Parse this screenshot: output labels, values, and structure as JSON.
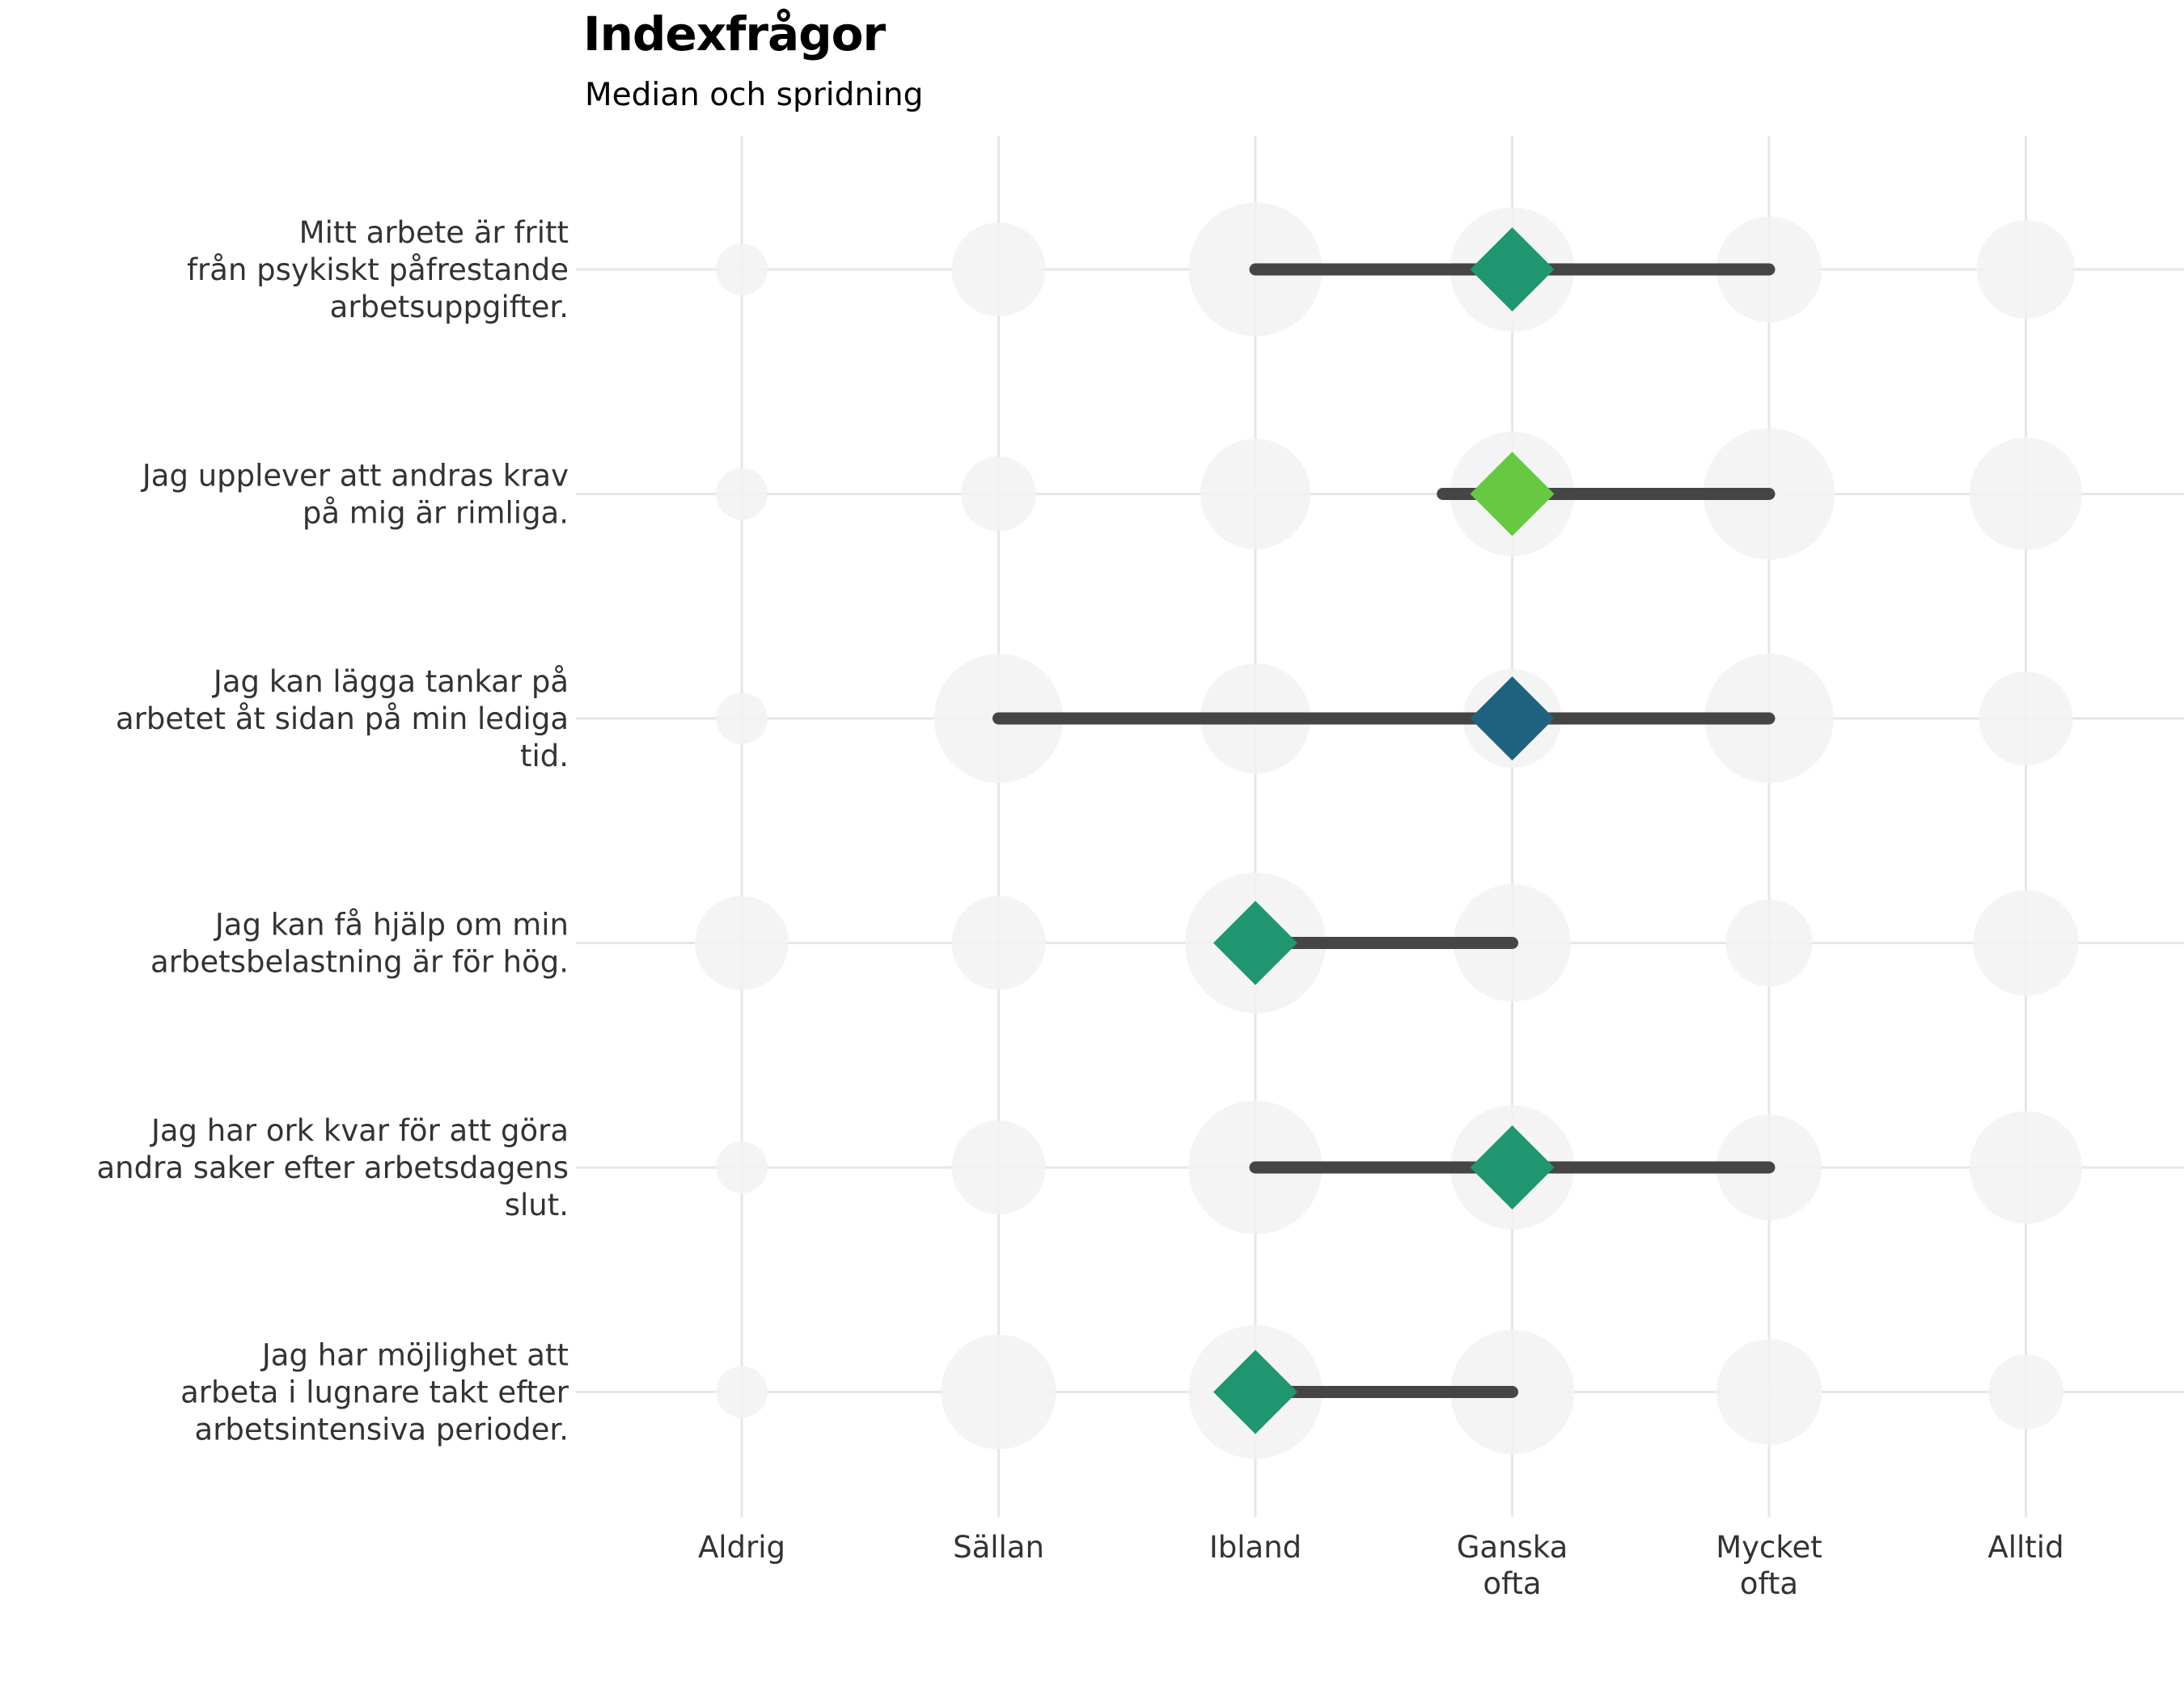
{
  "chart_data": {
    "type": "dot-range",
    "title": "Indexfrågor",
    "subtitle": "Median och spridning",
    "x_categories": [
      [
        "Aldrig"
      ],
      [
        "Sällan"
      ],
      [
        "Ibland"
      ],
      [
        "Ganska",
        "ofta"
      ],
      [
        "Mycket",
        "ofta"
      ],
      [
        "Alltid"
      ]
    ],
    "grid": true,
    "items": [
      {
        "label": [
          "Mitt arbete är fritt",
          "från psykiskt påfrestande",
          "arbetsuppgifter."
        ],
        "median": 3,
        "range": [
          2,
          4
        ],
        "bubble_sizes": [
          22,
          40,
          57,
          53,
          45,
          42
        ],
        "median_color": "#1f9670"
      },
      {
        "label": [
          "Jag upplever att andras krav",
          "på mig är rimliga."
        ],
        "median": 3,
        "range": [
          2.73,
          4
        ],
        "bubble_sizes": [
          22,
          32,
          47,
          53,
          56,
          48
        ],
        "median_color": "#67c841"
      },
      {
        "label": [
          "Jag kan lägga tankar på",
          "arbetet åt sidan på min lediga",
          "tid."
        ],
        "median": 3,
        "range": [
          1,
          4
        ],
        "bubble_sizes": [
          22,
          55,
          47,
          42,
          55,
          40
        ],
        "median_color": "#1f6280"
      },
      {
        "label": [
          "Jag kan få hjälp om min",
          "arbetsbelastning är för hög."
        ],
        "median": 2,
        "range": [
          2,
          3
        ],
        "bubble_sizes": [
          40,
          40,
          60,
          50,
          37,
          45
        ],
        "median_color": "#1f9670"
      },
      {
        "label": [
          "Jag har ork kvar för att göra",
          "andra saker efter arbetsdagens",
          "slut."
        ],
        "median": 3,
        "range": [
          2,
          4
        ],
        "bubble_sizes": [
          22,
          40,
          57,
          53,
          45,
          48
        ],
        "median_color": "#1f9670"
      },
      {
        "label": [
          "Jag har möjlighet att",
          "arbeta i lugnare takt efter",
          "arbetsintensiva perioder."
        ],
        "median": 2,
        "range": [
          2,
          3
        ],
        "bubble_sizes": [
          22,
          49,
          57,
          53,
          45,
          32
        ],
        "median_color": "#1f9670"
      }
    ],
    "colors": {
      "range_line": "#454545",
      "bubble": "#f2f2f2",
      "grid": "#e6e6e6"
    }
  }
}
